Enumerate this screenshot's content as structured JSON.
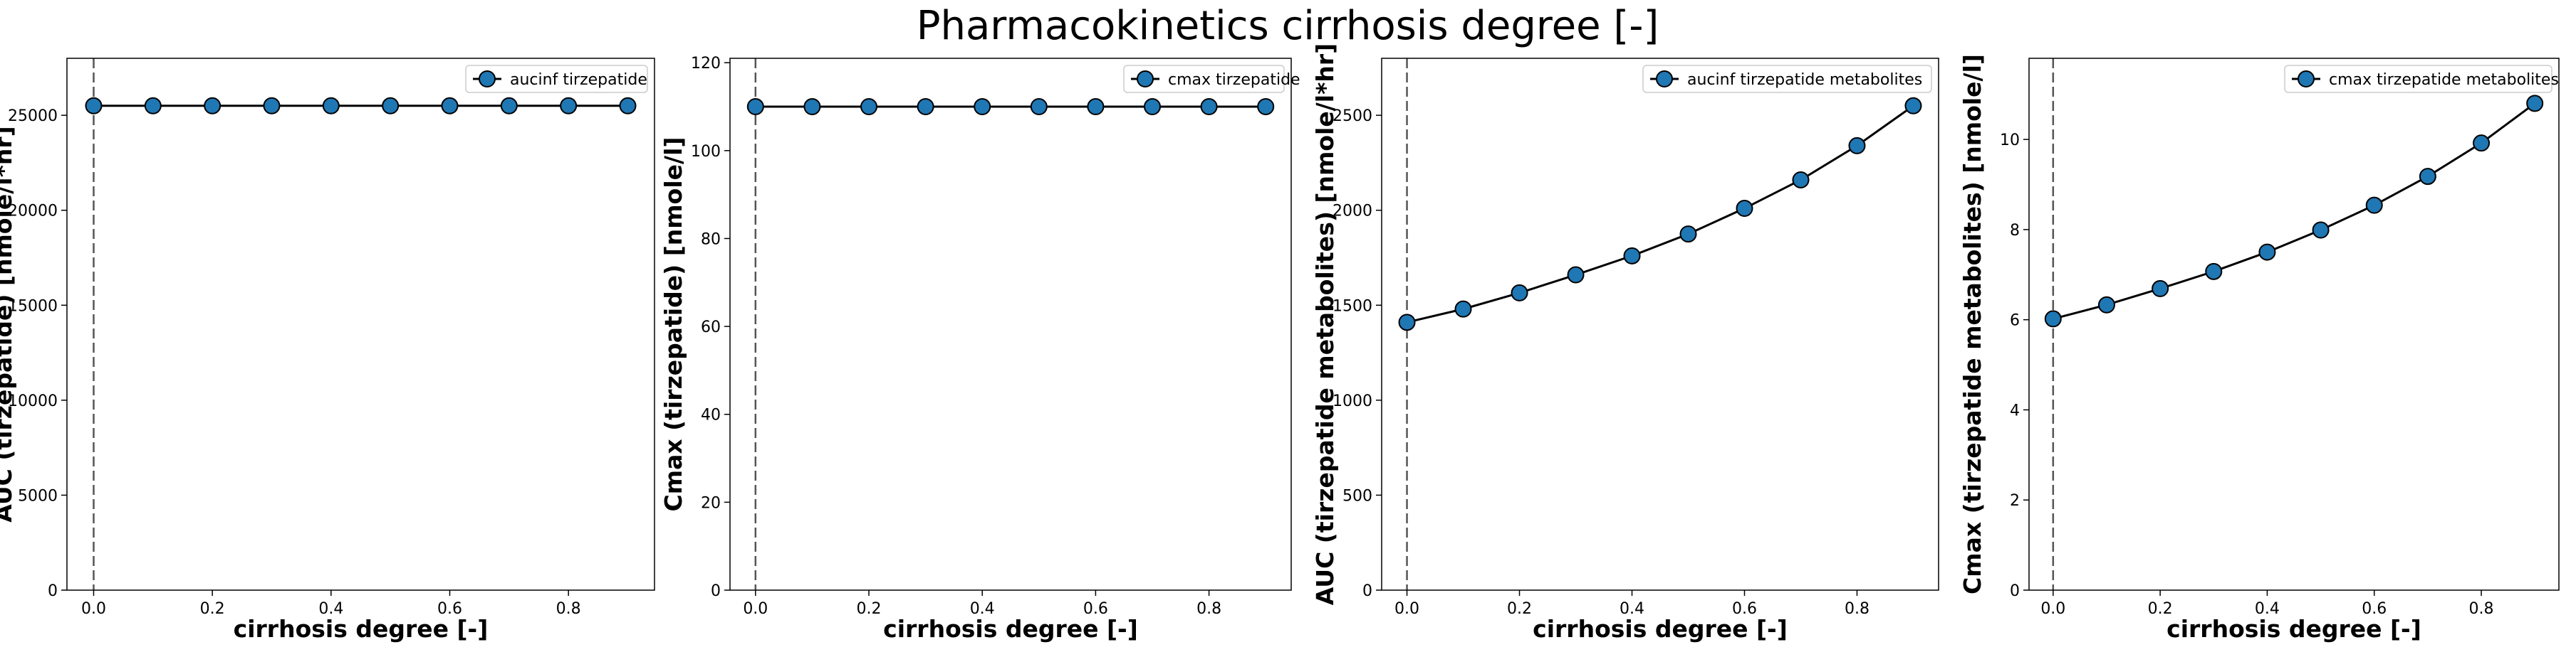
{
  "figure": {
    "suptitle": "Pharmacokinetics cirrhosis degree [-]"
  },
  "chart_data": [
    {
      "type": "line",
      "title": "",
      "xlabel": "cirrhosis degree [-]",
      "ylabel": "AUC (tirzepatide) [nmole/l*hr]",
      "xlim": [
        -0.045,
        0.945
      ],
      "ylim": [
        0,
        28000
      ],
      "xticks": [
        0.0,
        0.2,
        0.4,
        0.6,
        0.8
      ],
      "xticklabels": [
        "0.0",
        "0.2",
        "0.4",
        "0.6",
        "0.8"
      ],
      "yticks": [
        0,
        5000,
        10000,
        15000,
        20000,
        25000
      ],
      "yticklabels": [
        "0",
        "5000",
        "10000",
        "15000",
        "20000",
        "25000"
      ],
      "vline_x": 0.0,
      "legend_position": "top-right",
      "grid": false,
      "series": [
        {
          "name": "aucinf tirzepatide",
          "color": "#1f77b4",
          "x": [
            0.0,
            0.1,
            0.2,
            0.3,
            0.4,
            0.5,
            0.6,
            0.7,
            0.8,
            0.9
          ],
          "y": [
            25500,
            25500,
            25500,
            25500,
            25500,
            25500,
            25500,
            25500,
            25500,
            25500
          ]
        }
      ]
    },
    {
      "type": "line",
      "title": "",
      "xlabel": "cirrhosis degree [-]",
      "ylabel": "Cmax (tirzepatide) [nmole/l]",
      "xlim": [
        -0.045,
        0.945
      ],
      "ylim": [
        0,
        121
      ],
      "xticks": [
        0.0,
        0.2,
        0.4,
        0.6,
        0.8
      ],
      "xticklabels": [
        "0.0",
        "0.2",
        "0.4",
        "0.6",
        "0.8"
      ],
      "yticks": [
        0,
        20,
        40,
        60,
        80,
        100,
        120
      ],
      "yticklabels": [
        "0",
        "20",
        "40",
        "60",
        "80",
        "100",
        "120"
      ],
      "vline_x": 0.0,
      "legend_position": "top-right",
      "grid": false,
      "series": [
        {
          "name": "cmax tirzepatide",
          "color": "#1f77b4",
          "x": [
            0.0,
            0.1,
            0.2,
            0.3,
            0.4,
            0.5,
            0.6,
            0.7,
            0.8,
            0.9
          ],
          "y": [
            110,
            110,
            110,
            110,
            110,
            110,
            110,
            110,
            110,
            110
          ]
        }
      ]
    },
    {
      "type": "line",
      "title": "",
      "xlabel": "cirrhosis degree [-]",
      "ylabel": "AUC (tirzepatide metabolites) [nmole/l*hr]",
      "xlim": [
        -0.045,
        0.945
      ],
      "ylim": [
        0,
        2800
      ],
      "xticks": [
        0.0,
        0.2,
        0.4,
        0.6,
        0.8
      ],
      "xticklabels": [
        "0.0",
        "0.2",
        "0.4",
        "0.6",
        "0.8"
      ],
      "yticks": [
        0,
        500,
        1000,
        1500,
        2000,
        2500
      ],
      "yticklabels": [
        "0",
        "500",
        "1000",
        "1500",
        "2000",
        "2500"
      ],
      "vline_x": 0.0,
      "legend_position": "top-right",
      "grid": false,
      "series": [
        {
          "name": "aucinf tirzepatide metabolites",
          "color": "#1f77b4",
          "x": [
            0.0,
            0.1,
            0.2,
            0.3,
            0.4,
            0.5,
            0.6,
            0.7,
            0.8,
            0.9
          ],
          "y": [
            1410,
            1480,
            1565,
            1660,
            1760,
            1875,
            2010,
            2160,
            2340,
            2550
          ]
        }
      ]
    },
    {
      "type": "line",
      "title": "",
      "xlabel": "cirrhosis degree [-]",
      "ylabel": "Cmax (tirzepatide metabolites) [nmole/l]",
      "xlim": [
        -0.045,
        0.945
      ],
      "ylim": [
        0,
        11.8
      ],
      "xticks": [
        0.0,
        0.2,
        0.4,
        0.6,
        0.8
      ],
      "xticklabels": [
        "0.0",
        "0.2",
        "0.4",
        "0.6",
        "0.8"
      ],
      "yticks": [
        0,
        2,
        4,
        6,
        8,
        10
      ],
      "yticklabels": [
        "0",
        "2",
        "4",
        "6",
        "8",
        "10"
      ],
      "vline_x": 0.0,
      "legend_position": "top-right",
      "grid": false,
      "series": [
        {
          "name": "cmax tirzepatide metabolites",
          "color": "#1f77b4",
          "x": [
            0.0,
            0.1,
            0.2,
            0.3,
            0.4,
            0.5,
            0.6,
            0.7,
            0.8,
            0.9
          ],
          "y": [
            6.02,
            6.33,
            6.69,
            7.07,
            7.5,
            7.99,
            8.54,
            9.18,
            9.92,
            10.8
          ]
        }
      ]
    }
  ]
}
